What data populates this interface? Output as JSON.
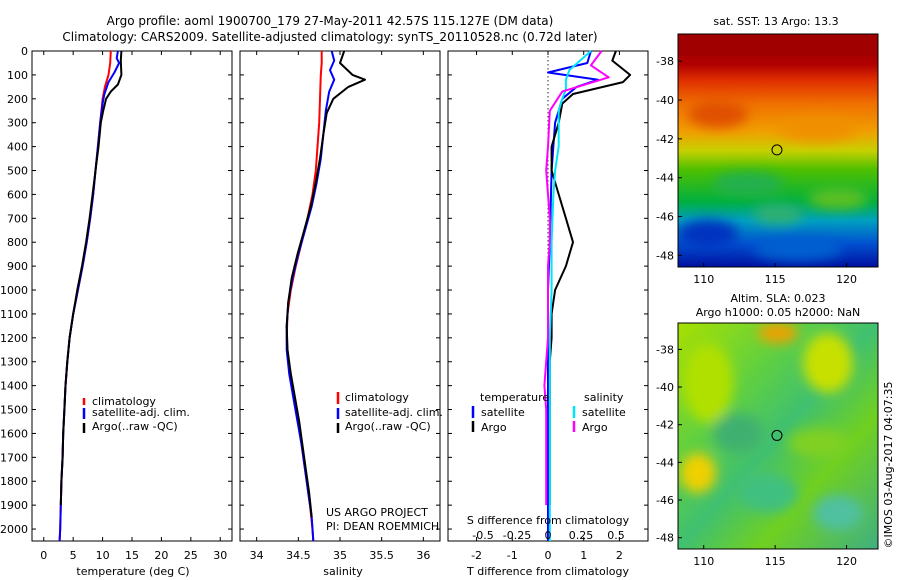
{
  "header": {
    "title_line1": "Argo profile: aoml 1900700_179 27-May-2011 42.57S 115.127E (DM data)",
    "title_line2": "Climatology: CARS2009. Satellite-adjusted climatology: synTS_20110528.nc (0.72d later)"
  },
  "colors": {
    "climatology": "#ff0000",
    "satellite": "#0000ff",
    "argo": "#000000",
    "s_satellite": "#00e5ff",
    "s_argo": "#ff00ff"
  },
  "chart_data": [
    {
      "id": "temperature",
      "type": "line",
      "xlabel": "temperature (deg C)",
      "ylabel": "",
      "xlim": [
        -2,
        32
      ],
      "ylim": [
        2050,
        0
      ],
      "xticks": [
        0,
        5,
        10,
        15,
        20,
        25,
        30
      ],
      "yticks": [
        0,
        100,
        200,
        300,
        400,
        500,
        600,
        700,
        800,
        900,
        1000,
        1100,
        1200,
        1300,
        1400,
        1500,
        1600,
        1700,
        1800,
        1900,
        2000
      ],
      "legend": [
        "climatology",
        "satellite-adj. clim.",
        "Argo(..raw -QC)"
      ],
      "series": [
        {
          "name": "climatology",
          "color": "#ff0000",
          "points": [
            [
              11.4,
              0
            ],
            [
              11.3,
              50
            ],
            [
              11.0,
              100
            ],
            [
              10.4,
              150
            ],
            [
              10.0,
              200
            ],
            [
              9.6,
              300
            ],
            [
              9.2,
              400
            ],
            [
              8.8,
              500
            ],
            [
              8.4,
              600
            ],
            [
              7.9,
              700
            ],
            [
              7.3,
              800
            ],
            [
              6.6,
              900
            ],
            [
              5.8,
              1000
            ],
            [
              5.0,
              1100
            ],
            [
              4.4,
              1200
            ],
            [
              4.0,
              1300
            ],
            [
              3.7,
              1400
            ],
            [
              3.5,
              1500
            ],
            [
              3.3,
              1600
            ],
            [
              3.2,
              1700
            ],
            [
              3.0,
              1800
            ],
            [
              2.9,
              1900
            ],
            [
              2.8,
              2000
            ],
            [
              2.7,
              2050
            ]
          ]
        },
        {
          "name": "satellite-adj. clim.",
          "color": "#0000ff",
          "points": [
            [
              12.6,
              0
            ],
            [
              12.4,
              30
            ],
            [
              12.8,
              50
            ],
            [
              12.0,
              90
            ],
            [
              11.0,
              130
            ],
            [
              10.3,
              180
            ],
            [
              10.0,
              220
            ],
            [
              9.6,
              300
            ],
            [
              9.2,
              400
            ],
            [
              8.8,
              500
            ],
            [
              8.4,
              600
            ],
            [
              7.9,
              700
            ],
            [
              7.3,
              800
            ],
            [
              6.6,
              900
            ],
            [
              5.8,
              1000
            ],
            [
              5.0,
              1100
            ],
            [
              4.4,
              1200
            ],
            [
              4.0,
              1300
            ],
            [
              3.7,
              1400
            ],
            [
              3.5,
              1500
            ],
            [
              3.3,
              1600
            ],
            [
              3.2,
              1700
            ],
            [
              3.0,
              1800
            ],
            [
              2.9,
              1900
            ],
            [
              2.8,
              2000
            ],
            [
              2.7,
              2050
            ]
          ]
        },
        {
          "name": "Argo(..raw -QC)",
          "color": "#000000",
          "points": [
            [
              13.2,
              0
            ],
            [
              13.1,
              40
            ],
            [
              13.2,
              100
            ],
            [
              12.6,
              140
            ],
            [
              11.4,
              170
            ],
            [
              10.6,
              200
            ],
            [
              10.1,
              250
            ],
            [
              9.7,
              300
            ],
            [
              9.3,
              400
            ],
            [
              8.8,
              500
            ],
            [
              8.3,
              600
            ],
            [
              7.8,
              700
            ],
            [
              7.2,
              800
            ],
            [
              6.5,
              900
            ],
            [
              5.7,
              1000
            ],
            [
              5.0,
              1100
            ],
            [
              4.4,
              1200
            ],
            [
              4.0,
              1300
            ],
            [
              3.7,
              1400
            ],
            [
              3.5,
              1500
            ],
            [
              3.3,
              1600
            ],
            [
              3.2,
              1700
            ],
            [
              3.0,
              1800
            ],
            [
              2.9,
              1900
            ]
          ]
        }
      ]
    },
    {
      "id": "salinity",
      "type": "line",
      "xlabel": "salinity",
      "xlim": [
        33.8,
        36.2
      ],
      "ylim": [
        2050,
        0
      ],
      "xticks": [
        34,
        34.5,
        35,
        35.5,
        36
      ],
      "legend": [
        "climatology",
        "satellite-adj. clim.",
        "Argo(..raw -QC)"
      ],
      "annotation": [
        "US ARGO PROJECT",
        "PI: DEAN ROEMMICH"
      ],
      "series": [
        {
          "name": "climatology",
          "color": "#ff0000",
          "points": [
            [
              34.78,
              0
            ],
            [
              34.78,
              50
            ],
            [
              34.77,
              100
            ],
            [
              34.76,
              200
            ],
            [
              34.75,
              300
            ],
            [
              34.73,
              400
            ],
            [
              34.71,
              500
            ],
            [
              34.67,
              600
            ],
            [
              34.61,
              700
            ],
            [
              34.54,
              800
            ],
            [
              34.47,
              900
            ],
            [
              34.41,
              1000
            ],
            [
              34.37,
              1100
            ],
            [
              34.36,
              1200
            ],
            [
              34.38,
              1300
            ],
            [
              34.42,
              1400
            ],
            [
              34.47,
              1500
            ],
            [
              34.52,
              1600
            ],
            [
              34.56,
              1700
            ],
            [
              34.6,
              1800
            ],
            [
              34.64,
              1900
            ],
            [
              34.67,
              2000
            ],
            [
              34.68,
              2050
            ]
          ]
        },
        {
          "name": "satellite-adj. clim.",
          "color": "#0000ff",
          "points": [
            [
              34.9,
              0
            ],
            [
              34.93,
              40
            ],
            [
              34.88,
              80
            ],
            [
              34.93,
              120
            ],
            [
              34.87,
              170
            ],
            [
              34.83,
              250
            ],
            [
              34.8,
              350
            ],
            [
              34.77,
              450
            ],
            [
              34.72,
              550
            ],
            [
              34.66,
              650
            ],
            [
              34.58,
              750
            ],
            [
              34.5,
              850
            ],
            [
              34.43,
              950
            ],
            [
              34.38,
              1050
            ],
            [
              34.36,
              1150
            ],
            [
              34.36,
              1250
            ],
            [
              34.39,
              1350
            ],
            [
              34.44,
              1450
            ],
            [
              34.49,
              1550
            ],
            [
              34.54,
              1650
            ],
            [
              34.58,
              1750
            ],
            [
              34.62,
              1850
            ],
            [
              34.66,
              1950
            ],
            [
              34.68,
              2050
            ]
          ]
        },
        {
          "name": "Argo(..raw -QC)",
          "color": "#000000",
          "points": [
            [
              35.05,
              0
            ],
            [
              35.0,
              50
            ],
            [
              35.15,
              100
            ],
            [
              35.3,
              120
            ],
            [
              35.1,
              150
            ],
            [
              34.92,
              200
            ],
            [
              34.84,
              260
            ],
            [
              34.8,
              350
            ],
            [
              34.76,
              450
            ],
            [
              34.71,
              550
            ],
            [
              34.65,
              650
            ],
            [
              34.57,
              750
            ],
            [
              34.49,
              850
            ],
            [
              34.42,
              950
            ],
            [
              34.38,
              1050
            ],
            [
              34.36,
              1150
            ],
            [
              34.37,
              1250
            ],
            [
              34.41,
              1350
            ],
            [
              34.46,
              1450
            ],
            [
              34.51,
              1550
            ],
            [
              34.55,
              1650
            ],
            [
              34.59,
              1750
            ],
            [
              34.63,
              1850
            ],
            [
              34.66,
              1950
            ]
          ]
        }
      ]
    },
    {
      "id": "difference",
      "type": "line",
      "xlabel": "T difference from climatology",
      "x2label": "S difference from climatology",
      "xlim": [
        -2.8,
        2.8
      ],
      "ylim": [
        2050,
        0
      ],
      "xticks": [
        -2,
        -1,
        0,
        1,
        2
      ],
      "x2ticks": [
        "-0.5",
        "-0.25",
        "0",
        "0.25",
        "0.5"
      ],
      "legend_title_left": "temperature",
      "legend_title_right": "salinity",
      "legend": [
        "satellite",
        "Argo",
        "satellite",
        "Argo"
      ],
      "series": [
        {
          "name": "temperature satellite",
          "color": "#0000ff",
          "points": [
            [
              1.2,
              0
            ],
            [
              1.1,
              50
            ],
            [
              0.0,
              90
            ],
            [
              1.4,
              120
            ],
            [
              0.8,
              150
            ],
            [
              0.4,
              200
            ],
            [
              0.2,
              300
            ],
            [
              0.1,
              500
            ],
            [
              0.05,
              800
            ],
            [
              0.0,
              1000
            ],
            [
              0.0,
              1200
            ],
            [
              0.0,
              1400
            ],
            [
              0.0,
              1600
            ],
            [
              0.0,
              1800
            ],
            [
              0.0,
              2050
            ]
          ]
        },
        {
          "name": "temperature Argo",
          "color": "#000000",
          "points": [
            [
              1.9,
              0
            ],
            [
              1.8,
              40
            ],
            [
              2.3,
              100
            ],
            [
              2.1,
              130
            ],
            [
              0.7,
              180
            ],
            [
              0.4,
              220
            ],
            [
              0.3,
              300
            ],
            [
              0.1,
              400
            ],
            [
              0.1,
              500
            ],
            [
              0.3,
              600
            ],
            [
              0.5,
              700
            ],
            [
              0.7,
              800
            ],
            [
              0.5,
              900
            ],
            [
              0.2,
              1000
            ],
            [
              0.1,
              1100
            ],
            [
              0.1,
              1200
            ],
            [
              0.05,
              1300
            ],
            [
              0.05,
              1400
            ],
            [
              0.05,
              1500
            ],
            [
              0.05,
              1600
            ],
            [
              0.05,
              1700
            ],
            [
              0.05,
              1800
            ],
            [
              0.05,
              1900
            ]
          ]
        },
        {
          "name": "salinity satellite",
          "color": "#00e5ff",
          "points": [
            [
              1.2,
              0
            ],
            [
              0.6,
              80
            ],
            [
              0.5,
              120
            ],
            [
              0.5,
              160
            ],
            [
              0.4,
              200
            ],
            [
              0.3,
              250
            ],
            [
              0.3,
              400
            ],
            [
              0.2,
              500
            ],
            [
              0.15,
              600
            ],
            [
              0.1,
              800
            ],
            [
              0.1,
              1000
            ],
            [
              0.05,
              1200
            ],
            [
              0.05,
              1400
            ],
            [
              0.05,
              1600
            ],
            [
              0.05,
              1800
            ],
            [
              0.05,
              2050
            ]
          ]
        },
        {
          "name": "salinity Argo",
          "color": "#ff00ff",
          "points": [
            [
              1.5,
              0
            ],
            [
              1.2,
              60
            ],
            [
              1.6,
              100
            ],
            [
              1.7,
              110
            ],
            [
              0.4,
              170
            ],
            [
              0.05,
              250
            ],
            [
              0.0,
              400
            ],
            [
              -0.05,
              500
            ],
            [
              0.0,
              600
            ],
            [
              0.05,
              700
            ],
            [
              0.05,
              800
            ],
            [
              0.0,
              900
            ],
            [
              0.0,
              1000
            ],
            [
              0.0,
              1100
            ],
            [
              0.0,
              1200
            ],
            [
              -0.05,
              1300
            ],
            [
              -0.1,
              1400
            ],
            [
              -0.05,
              1500
            ],
            [
              -0.05,
              1600
            ],
            [
              -0.05,
              1700
            ],
            [
              -0.05,
              1800
            ],
            [
              -0.05,
              1900
            ]
          ]
        }
      ]
    },
    {
      "id": "sst_map",
      "type": "heatmap",
      "title": "sat. SST: 13 Argo: 13.3",
      "xticks": [
        110,
        115,
        120
      ],
      "yticks": [
        -38,
        -40,
        -42,
        -44,
        -46,
        -48
      ],
      "xlim": [
        108.2,
        122.2
      ],
      "ylim": [
        -48.6,
        -36.6
      ],
      "marker": {
        "lon": 115.127,
        "lat": -42.57
      }
    },
    {
      "id": "sla_map",
      "type": "heatmap",
      "title": "Altim. SLA: 0.023",
      "subtitle": "Argo h1000: 0.05 h2000: NaN",
      "xticks": [
        110,
        115,
        120
      ],
      "yticks": [
        -38,
        -40,
        -42,
        -44,
        -46,
        -48
      ],
      "xlim": [
        108.2,
        122.2
      ],
      "ylim": [
        -48.6,
        -36.6
      ],
      "marker": {
        "lon": 115.127,
        "lat": -42.57
      }
    }
  ],
  "credit": "©IMOS 03-Aug-2017 04:07:35"
}
